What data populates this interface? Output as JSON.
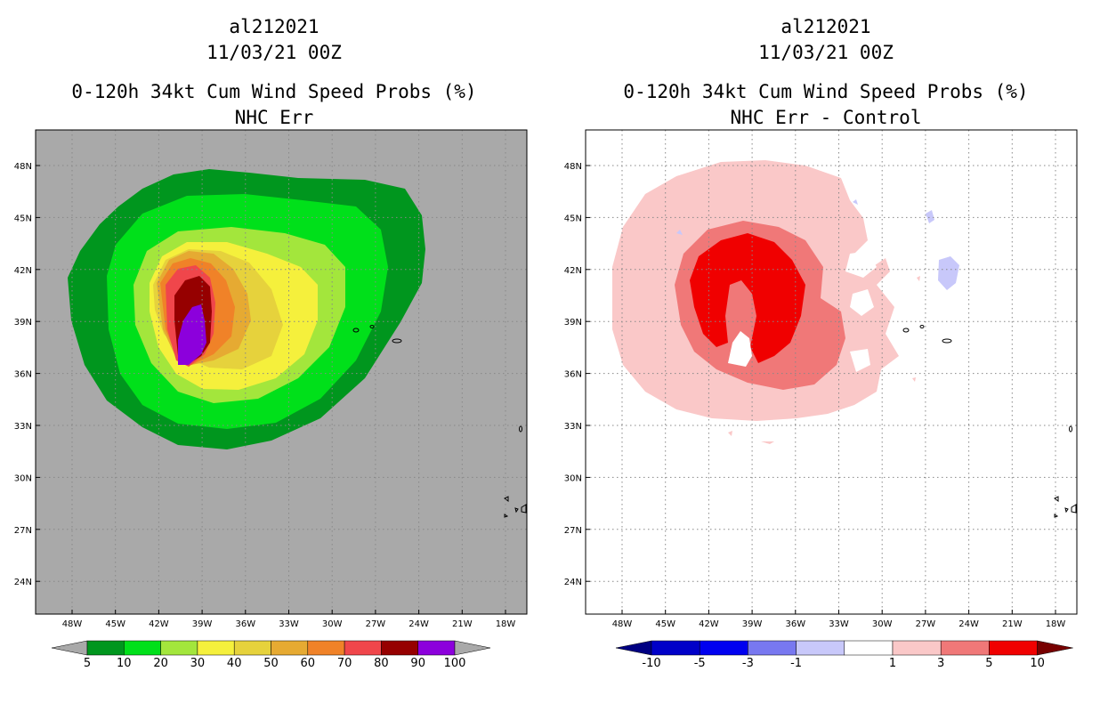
{
  "left_panel": {
    "storm_id": "al212021",
    "datetime": "11/03/21 00Z",
    "product": "0-120h 34kt Cum Wind Speed Probs (%)",
    "subtitle": "NHC Err",
    "colorbar": {
      "colors": [
        "#00961e",
        "#00e01a",
        "#a3e63c",
        "#f5f03c",
        "#e6d23c",
        "#e6aa32",
        "#f08228",
        "#f0464b",
        "#960000",
        "#8c00dc"
      ],
      "labels": [
        "5",
        "10",
        "20",
        "30",
        "40",
        "50",
        "60",
        "70",
        "80",
        "90",
        "100"
      ]
    }
  },
  "right_panel": {
    "storm_id": "al212021",
    "datetime": "11/03/21 00Z",
    "product": "0-120h 34kt Cum Wind Speed Probs (%)",
    "subtitle": "NHC Err - Control",
    "colorbar": {
      "colors": [
        "#0000c8",
        "#0000f0",
        "#7878f0",
        "#c8c8fa",
        "#ffffff",
        "#fac8c8",
        "#f07878",
        "#f00000"
      ],
      "labels": [
        "-10",
        "-5",
        "-3",
        "-1",
        "1",
        "3",
        "5",
        "10"
      ]
    }
  },
  "axes": {
    "lon_labels": [
      "48W",
      "45W",
      "42W",
      "39W",
      "36W",
      "33W",
      "30W",
      "27W",
      "24W",
      "21W",
      "18W"
    ],
    "lat_labels": [
      "48N",
      "45N",
      "42N",
      "39N",
      "36N",
      "33N",
      "30N",
      "27N",
      "24N"
    ]
  },
  "colors": {
    "land_bg_left": "#a9a9a9",
    "grid": "#888888"
  }
}
